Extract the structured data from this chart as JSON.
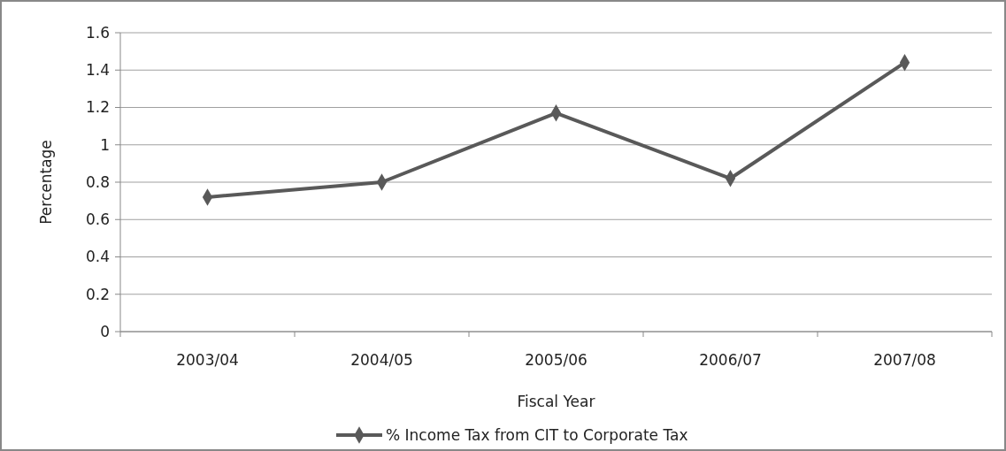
{
  "chart_data": {
    "type": "line",
    "xlabel": "Fiscal Year",
    "ylabel": "Percentage",
    "categories": [
      "2003/04",
      "2004/05",
      "2005/06",
      "2006/07",
      "2007/08"
    ],
    "series": [
      {
        "name": "% Income Tax from CIT to Corporate Tax",
        "color": "#595959",
        "values": [
          0.72,
          0.8,
          1.17,
          0.82,
          1.44
        ]
      }
    ],
    "ylim": [
      0,
      1.6
    ],
    "yticks": [
      0,
      {
        "value": 0.2,
        "label": "0.2"
      },
      {
        "value": 0.4,
        "label": "0.4"
      },
      {
        "value": 0.6,
        "label": "0.6"
      },
      {
        "value": 0.8,
        "label": "0.8"
      },
      1,
      {
        "value": 1.2,
        "label": "1.2"
      },
      {
        "value": 1.4,
        "label": "1.4"
      },
      {
        "value": 1.6,
        "label": "1.6"
      }
    ],
    "grid": "y",
    "legend": "bottom",
    "marker": "diamond",
    "line_style": "solid"
  }
}
